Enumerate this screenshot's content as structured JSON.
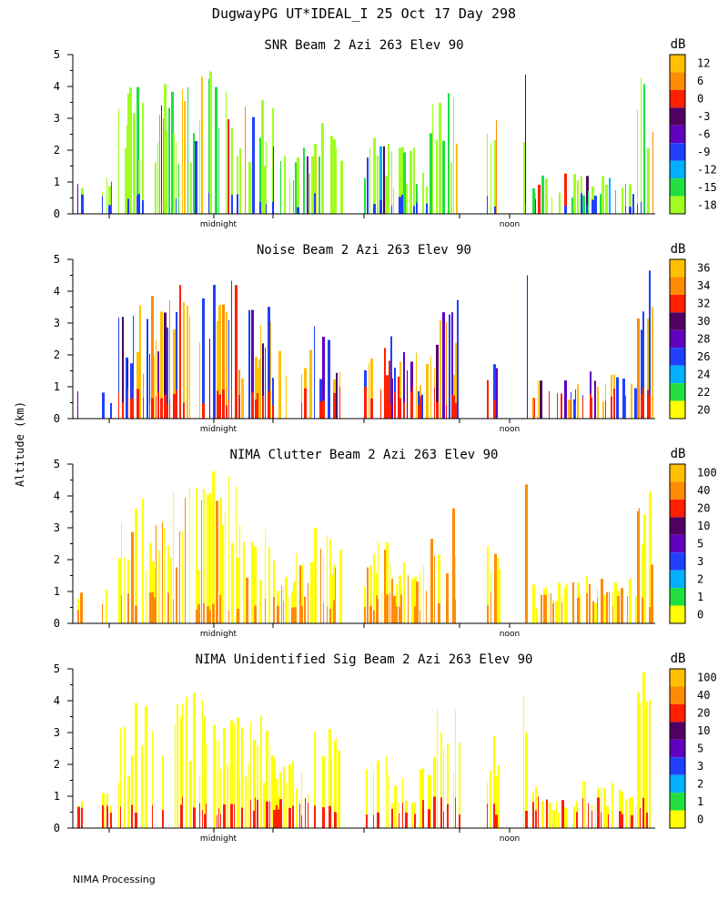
{
  "figure": {
    "title": "DugwayPG UT*IDEAL_I  25 Oct 17 Day 298",
    "ylabel": "Altitude (km)",
    "footer": "NIMA Processing"
  },
  "chart_data": [
    {
      "type": "heatmap",
      "title": "SNR Beam 2 Azi 263 Elev 90",
      "ylabel": "Altitude (km)",
      "ylim": [
        0,
        5
      ],
      "yticks": [
        "0",
        "1",
        "2",
        "3",
        "4",
        "5"
      ],
      "xtick_labels": [
        "midnight",
        "noon"
      ],
      "colorbar": {
        "unit": "dB",
        "labels": [
          "12",
          "6",
          "0",
          "-3",
          "-6",
          "-9",
          "-12",
          "-15",
          "-18"
        ],
        "colors": [
          "#ffc000",
          "#ff8c00",
          "#ff2000",
          "#500060",
          "#6000c0",
          "#2040ff",
          "#00b0ff",
          "#20e040",
          "#a0ff20"
        ]
      }
    },
    {
      "type": "heatmap",
      "title": "Noise Beam 2 Azi 263 Elev 90",
      "ylabel": "Altitude (km)",
      "ylim": [
        0,
        5
      ],
      "yticks": [
        "0",
        "1",
        "2",
        "3",
        "4",
        "5"
      ],
      "xtick_labels": [
        "midnight",
        "noon"
      ],
      "colorbar": {
        "unit": "dB",
        "labels": [
          "36",
          "34",
          "32",
          "30",
          "28",
          "26",
          "24",
          "22",
          "20"
        ],
        "colors": [
          "#ffc000",
          "#ff8c00",
          "#ff2000",
          "#500060",
          "#6000c0",
          "#2040ff",
          "#00b0ff",
          "#20e040",
          "#ffff00"
        ]
      }
    },
    {
      "type": "heatmap",
      "title": "NIMA Clutter Beam 2 Azi 263 Elev 90",
      "ylabel": "Altitude (km)",
      "ylim": [
        0,
        5
      ],
      "yticks": [
        "0",
        "1",
        "2",
        "3",
        "4",
        "5"
      ],
      "xtick_labels": [
        "midnight",
        "noon"
      ],
      "colorbar": {
        "unit": "dB",
        "labels": [
          "100",
          "40",
          "20",
          "10",
          "5",
          "3",
          "2",
          "1",
          "0"
        ],
        "colors": [
          "#ffc000",
          "#ff8c00",
          "#ff2000",
          "#500060",
          "#6000c0",
          "#2040ff",
          "#00b0ff",
          "#20e040",
          "#ffff00"
        ]
      }
    },
    {
      "type": "heatmap",
      "title": "NIMA Unidentified Sig Beam 2 Azi 263 Elev 90",
      "ylabel": "Altitude (km)",
      "ylim": [
        0,
        5
      ],
      "yticks": [
        "0",
        "1",
        "2",
        "3",
        "4",
        "5"
      ],
      "xtick_labels": [
        "midnight",
        "noon"
      ],
      "colorbar": {
        "unit": "dB",
        "labels": [
          "100",
          "40",
          "20",
          "10",
          "5",
          "3",
          "2",
          "1",
          "0"
        ],
        "colors": [
          "#ffc000",
          "#ff8c00",
          "#ff2000",
          "#500060",
          "#6000c0",
          "#2040ff",
          "#00b0ff",
          "#20e040",
          "#ffff00"
        ]
      }
    }
  ]
}
